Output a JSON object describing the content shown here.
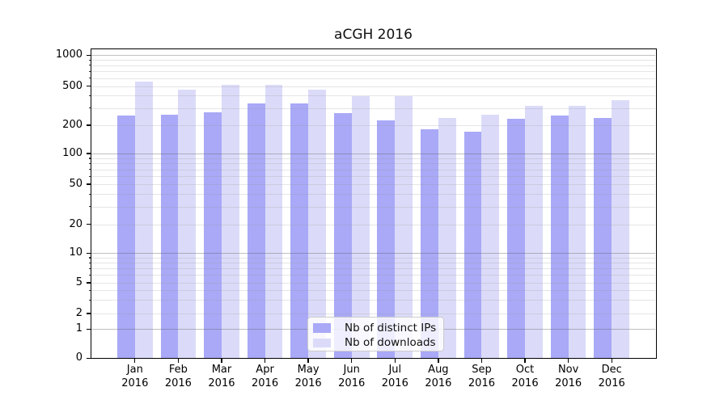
{
  "chart_data": {
    "type": "bar",
    "title": "aCGH 2016",
    "categories": [
      "Jan 2016",
      "Feb 2016",
      "Mar 2016",
      "Apr 2016",
      "May 2016",
      "Jun 2016",
      "Jul 2016",
      "Aug 2016",
      "Sep 2016",
      "Oct 2016",
      "Nov 2016",
      "Dec 2016"
    ],
    "month_labels": [
      "Jan",
      "Feb",
      "Mar",
      "Apr",
      "May",
      "Jun",
      "Jul",
      "Aug",
      "Sep",
      "Oct",
      "Nov",
      "Dec"
    ],
    "year_label": "2016",
    "series": [
      {
        "name": "Nb of distinct IPs",
        "color": "#a9a9f7",
        "values": [
          250,
          258,
          272,
          332,
          336,
          266,
          224,
          181,
          172,
          234,
          252,
          239
        ]
      },
      {
        "name": "Nb of downloads",
        "color": "#dbdbf9",
        "values": [
          557,
          461,
          515,
          515,
          464,
          396,
          396,
          237,
          258,
          315,
          317,
          362
        ]
      }
    ],
    "xlabel": "",
    "ylabel": "",
    "yscale": "symlog",
    "yticks": [
      1000,
      500,
      200,
      100,
      50,
      20,
      10,
      5,
      2,
      1,
      0
    ],
    "ylim": [
      0,
      1200
    ],
    "grid": true,
    "legend_position": "lower center",
    "colors": {
      "background": "#ffffff",
      "axis": "#000000",
      "grid_major": "#c6c6c6",
      "grid_minor": "#e2e2e2",
      "bar_distinct_ips": "#a9a9f7",
      "bar_downloads": "#dbdbf9"
    }
  }
}
